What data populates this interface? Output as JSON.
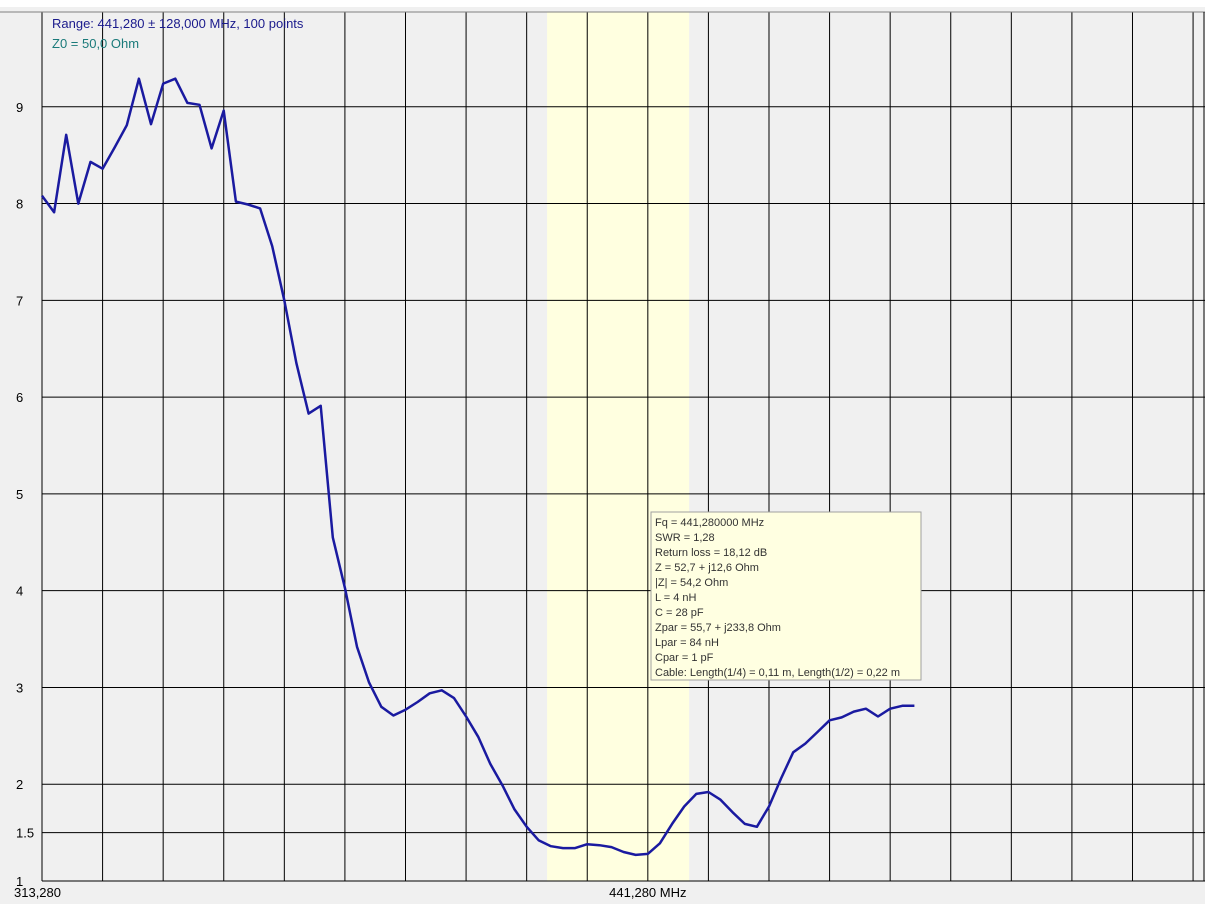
{
  "chart_data": {
    "type": "line",
    "annotations": [
      "Range: 441,280 ± 128,000 MHz, 100 points",
      "Z0 = 50,0 Ohm"
    ],
    "info_box": [
      "Fq = 441,280000 MHz",
      "SWR = 1,28",
      "Return loss = 18,12 dB",
      "Z = 52,7 + j12,6 Ohm",
      "|Z| = 54,2 Ohm",
      "L = 4 nH",
      "C = 28 pF",
      "Zpar = 55,7 + j233,8 Ohm",
      "Lpar = 84 nH",
      "Cpar = 1 pF",
      "Cable: Length(1/4) = 0,11 m, Length(1/2) = 0,22 m"
    ],
    "x": [
      313.28,
      315.84,
      318.4,
      320.96,
      323.52,
      326.08,
      328.64,
      331.2,
      333.76,
      336.32,
      338.88,
      341.44,
      344.0,
      346.56,
      349.12,
      351.68,
      354.24,
      356.8,
      359.36,
      361.92,
      364.48,
      367.04,
      369.6,
      372.16,
      374.72,
      377.28,
      379.84,
      382.4,
      384.96,
      387.52,
      390.08,
      392.64,
      395.2,
      397.76,
      400.32,
      402.88,
      405.44,
      408.0,
      410.56,
      413.12,
      415.68,
      418.24,
      420.8,
      423.36,
      425.92,
      428.48,
      431.04,
      433.6,
      436.16,
      438.72,
      441.28,
      443.84,
      446.4,
      448.96,
      451.52,
      454.08,
      456.64,
      459.2,
      461.76,
      464.32,
      466.88,
      469.44,
      472.0,
      474.56,
      477.12,
      479.68,
      482.24,
      484.8,
      487.36,
      489.92,
      492.48,
      495.04,
      497.6
    ],
    "series": [
      {
        "color": "#1a1aa0",
        "values": [
          8.08,
          7.91,
          8.71,
          8.0,
          8.43,
          8.36,
          8.58,
          8.81,
          9.29,
          8.82,
          9.24,
          9.29,
          9.04,
          9.02,
          8.57,
          8.96,
          8.02,
          7.99,
          7.95,
          7.56,
          7.0,
          6.35,
          5.83,
          5.91,
          4.55,
          4.03,
          3.42,
          3.05,
          2.8,
          2.71,
          2.77,
          2.85,
          2.94,
          2.97,
          2.89,
          2.7,
          2.49,
          2.21,
          1.99,
          1.74,
          1.56,
          1.42,
          1.36,
          1.34,
          1.34,
          1.38,
          1.37,
          1.35,
          1.3,
          1.27,
          1.28,
          1.39,
          1.59,
          1.77,
          1.9,
          1.92,
          1.84,
          1.71,
          1.59,
          1.56,
          1.77,
          2.06,
          2.33,
          2.42,
          2.54,
          2.66,
          2.69,
          2.75,
          2.78,
          2.7,
          2.78,
          2.81,
          2.81
        ]
      }
    ],
    "xlim": [
      313.28,
      559.0
    ],
    "xticks": [
      {
        "value": 313.28,
        "label": "313,280"
      },
      {
        "value": 441.28,
        "label": "441,280 MHz"
      }
    ],
    "xgrid": [
      313.28,
      326.08,
      338.88,
      351.68,
      364.48,
      377.28,
      390.08,
      402.88,
      415.68,
      428.48,
      441.28,
      454.08,
      466.88,
      479.68,
      492.48,
      505.28,
      518.08,
      530.88,
      543.68,
      556.48
    ],
    "ylim": [
      1,
      10
    ],
    "yticks": [
      1,
      1.5,
      2,
      3,
      4,
      5,
      6,
      7,
      8,
      9
    ],
    "grid": true,
    "band": {
      "x": [
        420,
        450
      ],
      "color": "#ffffe0"
    }
  }
}
